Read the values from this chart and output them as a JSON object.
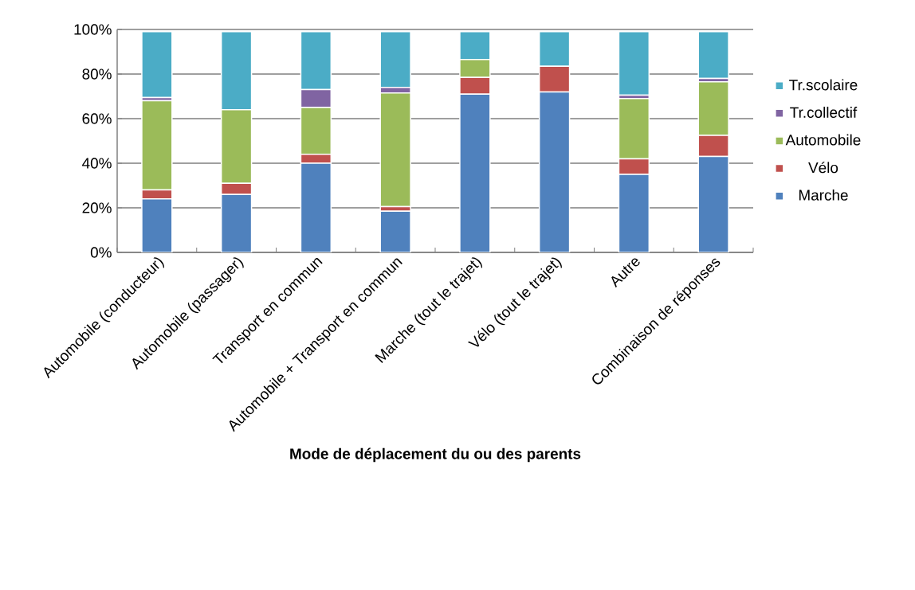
{
  "chart_data": {
    "type": "bar",
    "stacked": true,
    "grid": "y",
    "legend": "right",
    "xlabel": "Mode de déplacement du ou des parents",
    "categories": [
      "Automobile (conducteur)",
      "Automobile (passager)",
      "Transport en commun",
      "Automobile + Transport en commun",
      "Marche (tout le trajet)",
      "Vélo (tout le trajet)",
      "Autre",
      "Combinaison de réponses"
    ],
    "ylim": [
      0,
      100
    ],
    "yticks": [
      {
        "value": 0,
        "label": "0%"
      },
      {
        "value": 20,
        "label": "20%"
      },
      {
        "value": 40,
        "label": "40%"
      },
      {
        "value": 60,
        "label": "60%"
      },
      {
        "value": 80,
        "label": "80%"
      },
      {
        "value": 100,
        "label": "100%"
      }
    ],
    "series": [
      {
        "name": "Marche",
        "color": "#4f81bd",
        "values": [
          24,
          26,
          40,
          18.5,
          71,
          72,
          35,
          43
        ]
      },
      {
        "name": "Vélo",
        "color": "#c0504d",
        "values": [
          4,
          5,
          4,
          2,
          7.5,
          11.5,
          7,
          9.5
        ]
      },
      {
        "name": "Automobile",
        "color": "#9bbb59",
        "values": [
          40,
          33,
          21,
          51,
          8,
          0,
          27,
          24
        ]
      },
      {
        "name": "Tr.collectif",
        "color": "#8064a2",
        "values": [
          1.5,
          0,
          8,
          2.5,
          0,
          0,
          1.5,
          1.5
        ]
      },
      {
        "name": "Tr.scolaire",
        "color": "#4bacc6",
        "values": [
          29.5,
          35,
          26,
          25,
          12.5,
          15.5,
          28.5,
          21
        ]
      }
    ]
  }
}
